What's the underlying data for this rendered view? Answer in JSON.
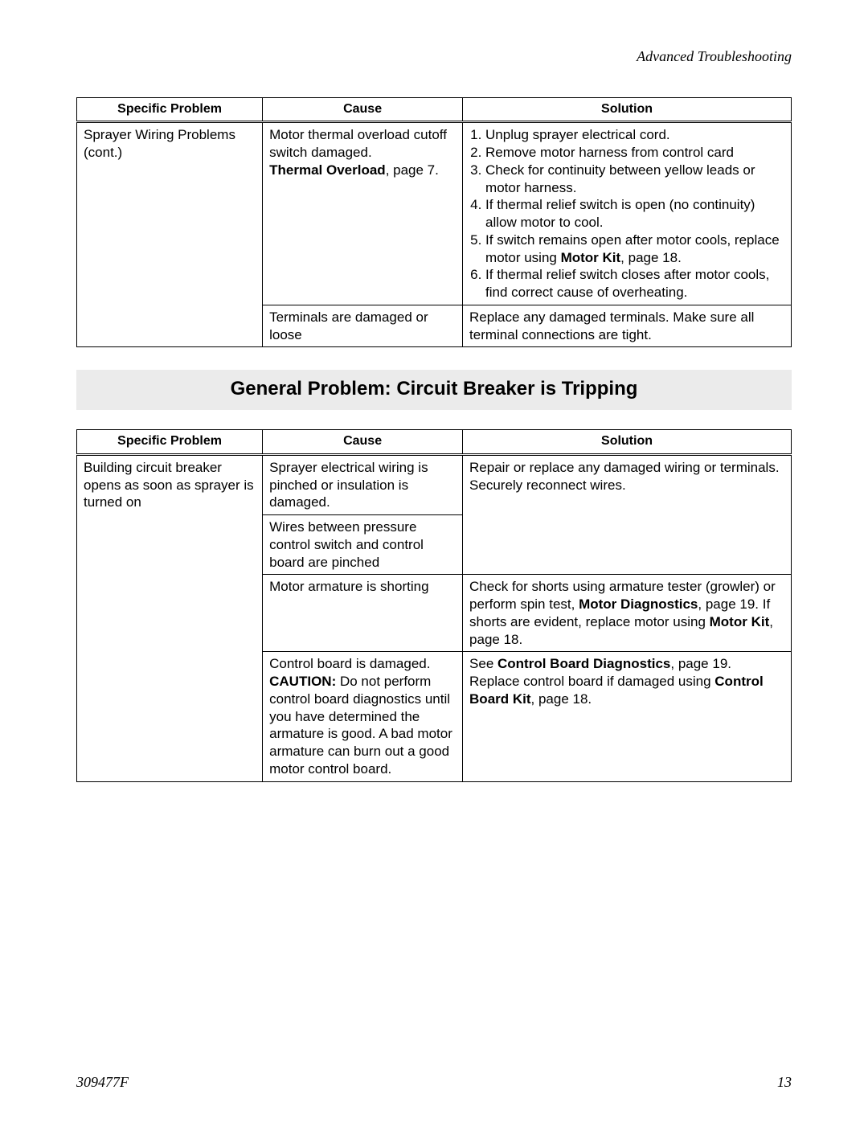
{
  "header": {
    "section_title": "Advanced Troubleshooting"
  },
  "footer": {
    "doc_id": "309477F",
    "page_no": "13"
  },
  "table1": {
    "headers": [
      "Specific Problem",
      "Cause",
      "Solution"
    ],
    "problem": "Sprayer Wiring Problems (cont.)",
    "row1": {
      "cause_line1": "Motor thermal overload cutoff switch damaged.",
      "cause_bold": "Thermal Overload",
      "cause_after_bold": ", page 7.",
      "sol1": "Unplug sprayer electrical cord.",
      "sol2": "Remove motor harness from control card",
      "sol3": "Check for continuity between yellow leads or motor harness.",
      "sol4": "If thermal relief switch is open (no continuity) allow motor to cool.",
      "sol5_a": "If switch remains open after motor cools, replace motor using ",
      "sol5_bold": "Motor Kit",
      "sol5_b": ", page 18.",
      "sol6": "If thermal relief switch closes after motor cools, find correct cause of overheating."
    },
    "row2": {
      "cause": "Terminals are damaged or loose",
      "solution": "Replace any damaged terminals. Make sure all terminal connections are tight."
    }
  },
  "section_title": "General Problem: Circuit Breaker is Tripping",
  "table2": {
    "headers": [
      "Specific Problem",
      "Cause",
      "Solution"
    ],
    "problem": "Building circuit breaker opens as soon as sprayer is turned on",
    "row1": {
      "cause": "Sprayer electrical wiring is pinched or insulation is damaged.",
      "solution": "Repair or replace any damaged wiring or terminals. Securely reconnect wires."
    },
    "row2": {
      "cause": "Wires between pressure control switch and control board are pinched"
    },
    "row3": {
      "cause": "Motor armature is shorting",
      "sol_a": "Check for shorts using armature tester (growler) or perform spin test, ",
      "sol_bold1": "Motor Diagnostics",
      "sol_b": ", page 19. If shorts are evident, replace motor using ",
      "sol_bold2": "Motor Kit",
      "sol_c": ", page 18."
    },
    "row4": {
      "cause_a": "Control board is damaged. ",
      "cause_bold": "CAUTION:",
      "cause_b": " Do not perform control board diagnostics until you have determined the armature is good. A bad motor armature can burn out a good motor control board.",
      "sol_a": "See ",
      "sol_bold1": "Control Board Diagnostics",
      "sol_b": ", page 19. Replace control board if damaged using ",
      "sol_bold2": "Control Board Kit",
      "sol_c": ", page 18."
    }
  }
}
